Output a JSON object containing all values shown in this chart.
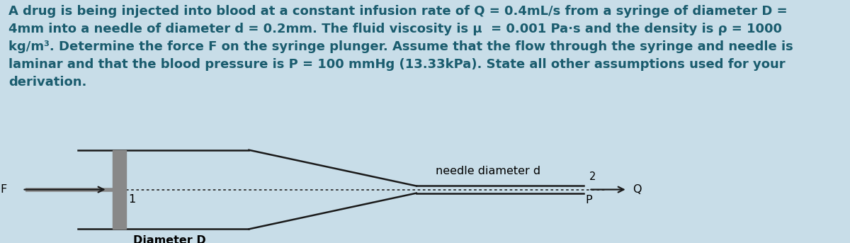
{
  "bg_color": "#c8dde8",
  "diagram_box_color": "#f2f2f2",
  "text_color": "#1a5c6e",
  "wall_color": "#1a1a1a",
  "plunger_color": "#888888",
  "dot_color": "#333333",
  "title_lines": [
    "A drug is being injected into blood at a constant infusion rate of Q = 0.4mL/s from a syringe of diameter D =",
    "4mm into a needle of diameter d = 0.2mm. The fluid viscosity is μ  = 0.001 Pa·s and the density is ρ = 1000",
    "kg/m³. Determine the force F on the syringe plunger. Assume that the flow through the syringe and needle is",
    "laminar and that the blood pressure is P = 100 mmHg (13.33kPa). State all other assumptions used for your",
    "derivation."
  ],
  "label_F": "F",
  "label_1": "1",
  "label_2": "2",
  "label_P": "P",
  "label_Q": "Q",
  "label_needle": "needle diameter d",
  "label_diameter": "Diameter D",
  "title_fontsize": 13.0,
  "diagram_fontsize": 11.5
}
